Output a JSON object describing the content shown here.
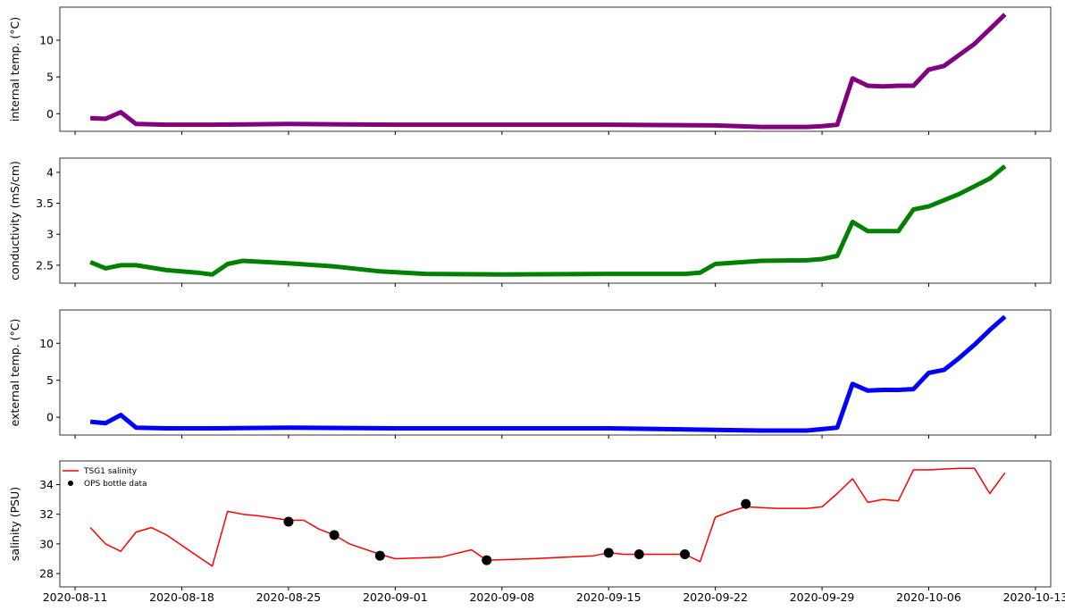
{
  "chart_data": [
    {
      "type": "line",
      "ylabel": "internal temp. (°C)",
      "ylim": [
        -2.4,
        14.5
      ],
      "yticks": [
        0,
        5,
        10
      ],
      "x": [
        "2020-08-12",
        "2020-08-13",
        "2020-08-14",
        "2020-08-15",
        "2020-08-17",
        "2020-08-20",
        "2020-08-25",
        "2020-09-01",
        "2020-09-08",
        "2020-09-15",
        "2020-09-22",
        "2020-09-25",
        "2020-09-28",
        "2020-09-29",
        "2020-09-30",
        "2020-10-01",
        "2020-10-02",
        "2020-10-03",
        "2020-10-04",
        "2020-10-05",
        "2020-10-06",
        "2020-10-07",
        "2020-10-08",
        "2020-10-09",
        "2020-10-10",
        "2020-10-11"
      ],
      "series": [
        {
          "color": "#800080",
          "values": [
            -0.6,
            -0.7,
            0.2,
            -1.4,
            -1.5,
            -1.5,
            -1.4,
            -1.5,
            -1.5,
            -1.5,
            -1.6,
            -1.8,
            -1.8,
            -1.7,
            -1.5,
            4.8,
            3.8,
            3.7,
            3.8,
            3.8,
            6.0,
            6.5,
            8.0,
            9.5,
            11.5,
            13.5
          ]
        }
      ]
    },
    {
      "type": "line",
      "ylabel": "conductivity (mS/cm)",
      "ylim": [
        2.21,
        4.23
      ],
      "yticks": [
        2.5,
        3.0,
        3.5,
        4.0
      ],
      "x": [
        "2020-08-12",
        "2020-08-13",
        "2020-08-14",
        "2020-08-15",
        "2020-08-17",
        "2020-08-19",
        "2020-08-20",
        "2020-08-21",
        "2020-08-22",
        "2020-08-25",
        "2020-08-28",
        "2020-08-31",
        "2020-09-03",
        "2020-09-08",
        "2020-09-15",
        "2020-09-20",
        "2020-09-21",
        "2020-09-22",
        "2020-09-25",
        "2020-09-28",
        "2020-09-29",
        "2020-09-30",
        "2020-10-01",
        "2020-10-02",
        "2020-10-04",
        "2020-10-05",
        "2020-10-06",
        "2020-10-08",
        "2020-10-10",
        "2020-10-11"
      ],
      "series": [
        {
          "color": "#008000",
          "values": [
            2.55,
            2.45,
            2.5,
            2.5,
            2.42,
            2.38,
            2.35,
            2.52,
            2.57,
            2.53,
            2.48,
            2.4,
            2.36,
            2.35,
            2.36,
            2.36,
            2.38,
            2.52,
            2.57,
            2.58,
            2.6,
            2.65,
            3.2,
            3.05,
            3.05,
            3.4,
            3.45,
            3.65,
            3.9,
            4.1
          ]
        }
      ]
    },
    {
      "type": "line",
      "ylabel": "external temp. (°C)",
      "ylim": [
        -2.4,
        14.5
      ],
      "yticks": [
        0,
        5,
        10
      ],
      "x": [
        "2020-08-12",
        "2020-08-13",
        "2020-08-14",
        "2020-08-15",
        "2020-08-17",
        "2020-08-20",
        "2020-08-25",
        "2020-09-01",
        "2020-09-08",
        "2020-09-15",
        "2020-09-22",
        "2020-09-25",
        "2020-09-28",
        "2020-09-29",
        "2020-09-30",
        "2020-10-01",
        "2020-10-02",
        "2020-10-03",
        "2020-10-04",
        "2020-10-05",
        "2020-10-06",
        "2020-10-07",
        "2020-10-08",
        "2020-10-09",
        "2020-10-10",
        "2020-10-11"
      ],
      "series": [
        {
          "color": "#0000ff",
          "values": [
            -0.6,
            -0.8,
            0.3,
            -1.4,
            -1.5,
            -1.5,
            -1.4,
            -1.5,
            -1.5,
            -1.5,
            -1.7,
            -1.8,
            -1.8,
            -1.6,
            -1.4,
            4.5,
            3.6,
            3.7,
            3.7,
            3.8,
            6.0,
            6.4,
            8.0,
            9.8,
            11.8,
            13.6
          ]
        }
      ]
    },
    {
      "type": "line",
      "ylabel": "salinity (PSU)",
      "ylim": [
        27.1,
        35.6
      ],
      "yticks": [
        28,
        30,
        32,
        34
      ],
      "xlim": [
        "2020-08-10",
        "2020-10-14"
      ],
      "xticks": [
        "2020-08-11",
        "2020-08-18",
        "2020-08-25",
        "2020-09-01",
        "2020-09-08",
        "2020-09-15",
        "2020-09-22",
        "2020-09-29",
        "2020-10-06",
        "2020-10-13"
      ],
      "legend": "upper left",
      "x": [
        "2020-08-12",
        "2020-08-13",
        "2020-08-14",
        "2020-08-15",
        "2020-08-16",
        "2020-08-17",
        "2020-08-19",
        "2020-08-20",
        "2020-08-21",
        "2020-08-22",
        "2020-08-23",
        "2020-08-25",
        "2020-08-26",
        "2020-08-27",
        "2020-08-28",
        "2020-08-29",
        "2020-08-31",
        "2020-09-01",
        "2020-09-04",
        "2020-09-06",
        "2020-09-07",
        "2020-09-10",
        "2020-09-14",
        "2020-09-15",
        "2020-09-16",
        "2020-09-20",
        "2020-09-21",
        "2020-09-22",
        "2020-09-23",
        "2020-09-24",
        "2020-09-26",
        "2020-09-28",
        "2020-09-29",
        "2020-09-30",
        "2020-10-01",
        "2020-10-02",
        "2020-10-03",
        "2020-10-04",
        "2020-10-05",
        "2020-10-06",
        "2020-10-08",
        "2020-10-09",
        "2020-10-10",
        "2020-10-11"
      ],
      "series": [
        {
          "name": "TSG1 salinity",
          "type": "line",
          "color": "#ff0000",
          "values": [
            31.1,
            30.0,
            29.5,
            30.8,
            31.1,
            30.6,
            29.2,
            28.5,
            32.2,
            32.0,
            31.9,
            31.6,
            31.6,
            31.0,
            30.6,
            30.0,
            29.3,
            29.0,
            29.1,
            29.6,
            28.9,
            29.0,
            29.2,
            29.4,
            29.3,
            29.3,
            28.8,
            31.8,
            32.2,
            32.5,
            32.4,
            32.4,
            32.5,
            33.4,
            34.4,
            32.8,
            33.0,
            32.9,
            35.0,
            35.0,
            35.1,
            35.1,
            33.4,
            34.8
          ]
        },
        {
          "name": "OPS bottle data",
          "type": "scatter",
          "color": "#000000",
          "x": [
            "2020-08-25",
            "2020-08-28",
            "2020-08-31",
            "2020-09-07",
            "2020-09-15",
            "2020-09-17",
            "2020-09-20",
            "2020-09-24"
          ],
          "values": [
            31.5,
            30.6,
            29.2,
            28.9,
            29.4,
            29.3,
            29.3,
            32.7
          ]
        }
      ]
    }
  ]
}
